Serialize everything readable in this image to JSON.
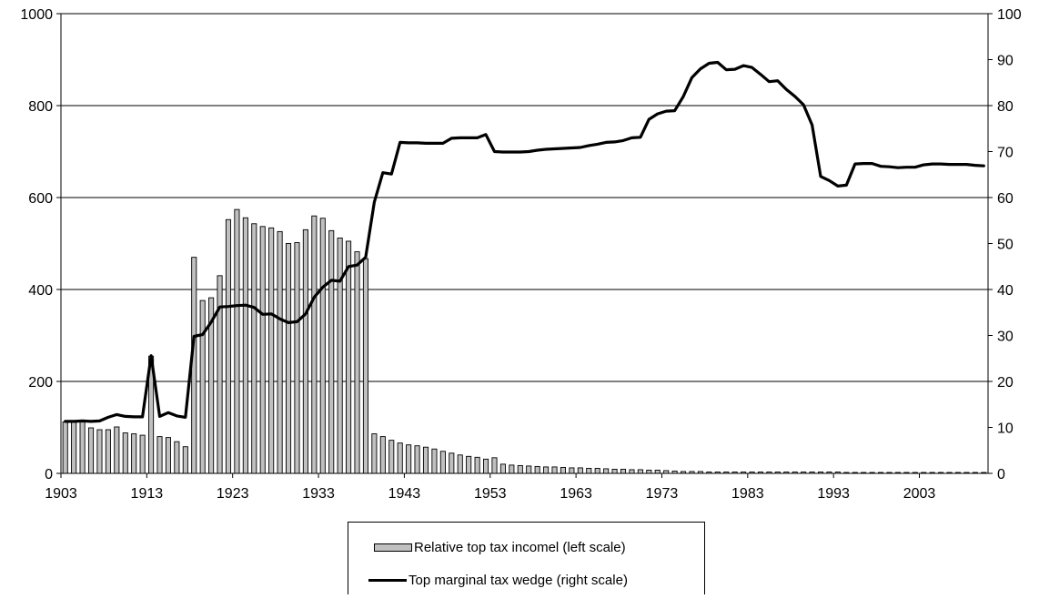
{
  "chart_data": {
    "type": "bar+line",
    "title": "",
    "x_start_year": 1903,
    "x_end_year": 2010,
    "x_tick_labels": [
      "1903",
      "1913",
      "1923",
      "1933",
      "1943",
      "1953",
      "1963",
      "1973",
      "1983",
      "1993",
      "2003"
    ],
    "y_left_ticks": [
      "0",
      "200",
      "400",
      "600",
      "800",
      "1000"
    ],
    "y_right_ticks": [
      "0",
      "10",
      "20",
      "30",
      "40",
      "50",
      "60",
      "70",
      "80",
      "90",
      "100"
    ],
    "y_left_range": [
      0,
      1000
    ],
    "y_right_range": [
      0,
      100
    ],
    "gridlines": true,
    "legend_position": "bottom",
    "series": [
      {
        "name": "Relative top tax incomel (left scale)",
        "type": "bar",
        "axis": "left",
        "color": "#c0c0c0",
        "values": [
          112,
          111,
          114,
          99,
          95,
          95,
          101,
          88,
          86,
          83,
          255,
          80,
          78,
          69,
          58,
          470,
          376,
          382,
          430,
          552,
          574,
          556,
          543,
          537,
          534,
          526,
          500,
          502,
          530,
          560,
          555,
          528,
          512,
          505,
          482,
          467,
          86,
          80,
          72,
          66,
          62,
          60,
          57,
          53,
          48,
          44,
          40,
          37,
          35,
          31,
          34,
          20,
          18,
          17,
          16,
          15,
          14,
          14,
          13,
          12,
          12,
          11,
          11,
          10,
          9,
          9,
          8,
          8,
          7,
          7,
          6,
          5,
          4,
          4,
          4,
          3,
          3,
          3,
          3,
          3,
          3,
          3,
          3,
          3,
          3,
          3,
          3,
          3,
          3,
          3,
          3,
          2,
          2,
          2,
          2,
          2,
          2,
          2,
          2,
          2,
          2,
          2,
          2,
          2,
          2,
          2,
          2,
          2
        ]
      },
      {
        "name": "Top marginal tax wedge (right scale)",
        "type": "line",
        "axis": "right",
        "color": "#000000",
        "values": [
          11.3,
          11.3,
          11.4,
          11.3,
          11.4,
          12.2,
          12.8,
          12.4,
          12.3,
          12.3,
          25.6,
          12.4,
          13.2,
          12.5,
          12.2,
          29.8,
          30.2,
          32.9,
          36.2,
          36.3,
          36.5,
          36.6,
          36.1,
          34.6,
          34.7,
          33.6,
          32.8,
          33.0,
          34.7,
          38.3,
          40.5,
          42.0,
          41.8,
          45.0,
          45.3,
          47.0,
          59.0,
          65.4,
          65.1,
          72.0,
          71.9,
          71.9,
          71.8,
          71.8,
          71.8,
          72.9,
          73.0,
          73.0,
          73.0,
          73.7,
          70.0,
          69.9,
          69.9,
          69.9,
          70.0,
          70.3,
          70.5,
          70.6,
          70.7,
          70.8,
          70.9,
          71.3,
          71.6,
          72.0,
          72.1,
          72.4,
          73.0,
          73.1,
          77.0,
          78.2,
          78.8,
          78.9,
          82.0,
          86.1,
          88.0,
          89.2,
          89.4,
          87.8,
          87.9,
          88.7,
          88.3,
          86.8,
          85.2,
          85.4,
          83.5,
          82.0,
          80.2,
          75.8,
          64.6,
          63.7,
          62.5,
          62.7,
          67.3,
          67.4,
          67.4,
          66.8,
          66.7,
          66.5,
          66.6,
          66.6,
          67.1,
          67.3,
          67.3,
          67.2,
          67.2,
          67.2,
          67.0,
          66.9
        ]
      }
    ]
  }
}
